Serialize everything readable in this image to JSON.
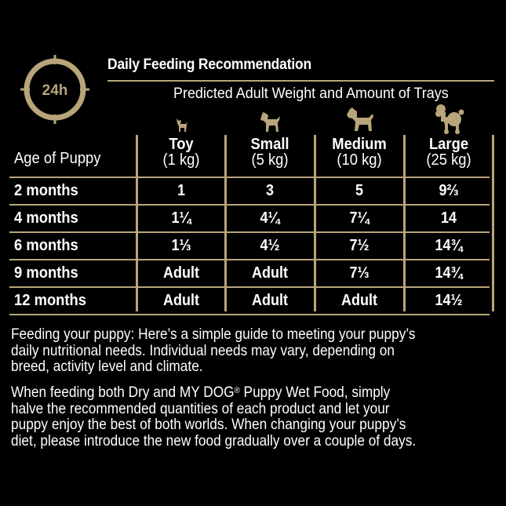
{
  "badge": {
    "label": "24h"
  },
  "header": {
    "title": "Daily Feeding Recommendation",
    "subtitle": "Predicted Adult Weight and Amount of Trays"
  },
  "table": {
    "age_header": "Age of Puppy",
    "columns": [
      {
        "name": "Toy",
        "weight": "(1 kg)",
        "icon": "toy-dog-icon"
      },
      {
        "name": "Small",
        "weight": "(5 kg)",
        "icon": "small-dog-icon"
      },
      {
        "name": "Medium",
        "weight": "(10 kg)",
        "icon": "medium-dog-icon"
      },
      {
        "name": "Large",
        "weight": "(25 kg)",
        "icon": "poodle-icon"
      }
    ],
    "rows": [
      {
        "age": "2 months",
        "values": [
          "1",
          "3",
          "5",
          "9⅔"
        ]
      },
      {
        "age": "4 months",
        "values": [
          "1¼",
          "4¼",
          "7¼",
          "14"
        ]
      },
      {
        "age": "6 months",
        "values": [
          "1⅓",
          "4½",
          "7½",
          "14¾"
        ]
      },
      {
        "age": "9 months",
        "values": [
          "Adult",
          "Adult",
          "7⅓",
          "14¾"
        ]
      },
      {
        "age": "12 months",
        "values": [
          "Adult",
          "Adult",
          "Adult",
          "14½"
        ]
      }
    ]
  },
  "notes": {
    "p1_lines": [
      "Feeding your puppy: Here’s a simple guide to meeting your puppy’s",
      "daily nutritional needs.  Individual needs may vary, depending on",
      "breed, activity level and climate."
    ],
    "p2_line1_pre": "When feeding both Dry and MY DOG",
    "p2_reg": "®",
    "p2_line1_post": " Puppy Wet Food, simply",
    "p2_lines": [
      "halve the recommended quantities of each product and let your",
      "puppy enjoy the best of both worlds.  When changing your puppy’s",
      "diet, please introduce the new food gradually over a couple of days."
    ]
  },
  "colors": {
    "accent": "#b8a57a",
    "background": "#000000",
    "text": "#ffffff"
  }
}
